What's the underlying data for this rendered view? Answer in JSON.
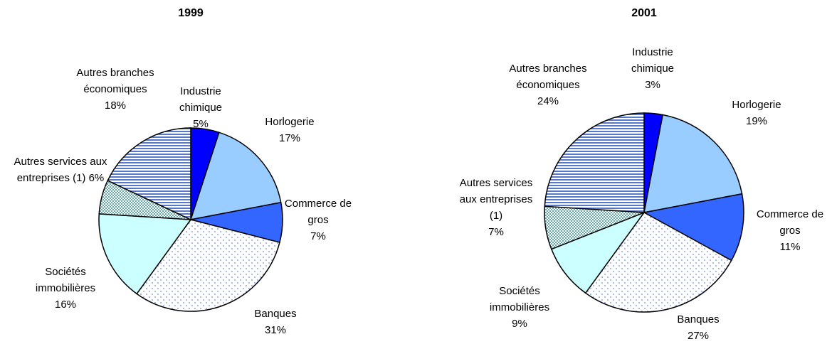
{
  "chart_data": [
    {
      "type": "pie",
      "title": "1999",
      "categories": [
        "Industrie chimique",
        "Horlogerie",
        "Commerce de gros",
        "Banques",
        "Sociétés immobilières",
        "Autres services aux entreprises (1)",
        "Autres branches économiques"
      ],
      "values": [
        5,
        17,
        7,
        31,
        16,
        6,
        18
      ],
      "value_labels": [
        "5%",
        "17%",
        "7%",
        "31%",
        "16%",
        "6%",
        "18%"
      ],
      "colors": [
        "#0000ff",
        "#99ccff",
        "#3366ff",
        "#ffffff",
        "#ccffff",
        "#ffffff",
        "#ffffff"
      ],
      "patterns": [
        "solid",
        "solid",
        "solid",
        "dots",
        "solid",
        "checker",
        "stripes"
      ]
    },
    {
      "type": "pie",
      "title": "2001",
      "categories": [
        "Industrie chimique",
        "Horlogerie",
        "Commerce de gros",
        "Banques",
        "Sociétés immobilières",
        "Autres services aux entreprises (1)",
        "Autres branches économiques"
      ],
      "values": [
        3,
        19,
        11,
        27,
        9,
        7,
        24
      ],
      "value_labels": [
        "3%",
        "19%",
        "11%",
        "27%",
        "9%",
        "7%",
        "24%"
      ],
      "colors": [
        "#0000ff",
        "#99ccff",
        "#3366ff",
        "#ffffff",
        "#ccffff",
        "#ffffff",
        "#ffffff"
      ],
      "patterns": [
        "solid",
        "solid",
        "solid",
        "dots",
        "solid",
        "checker",
        "stripes"
      ]
    }
  ]
}
